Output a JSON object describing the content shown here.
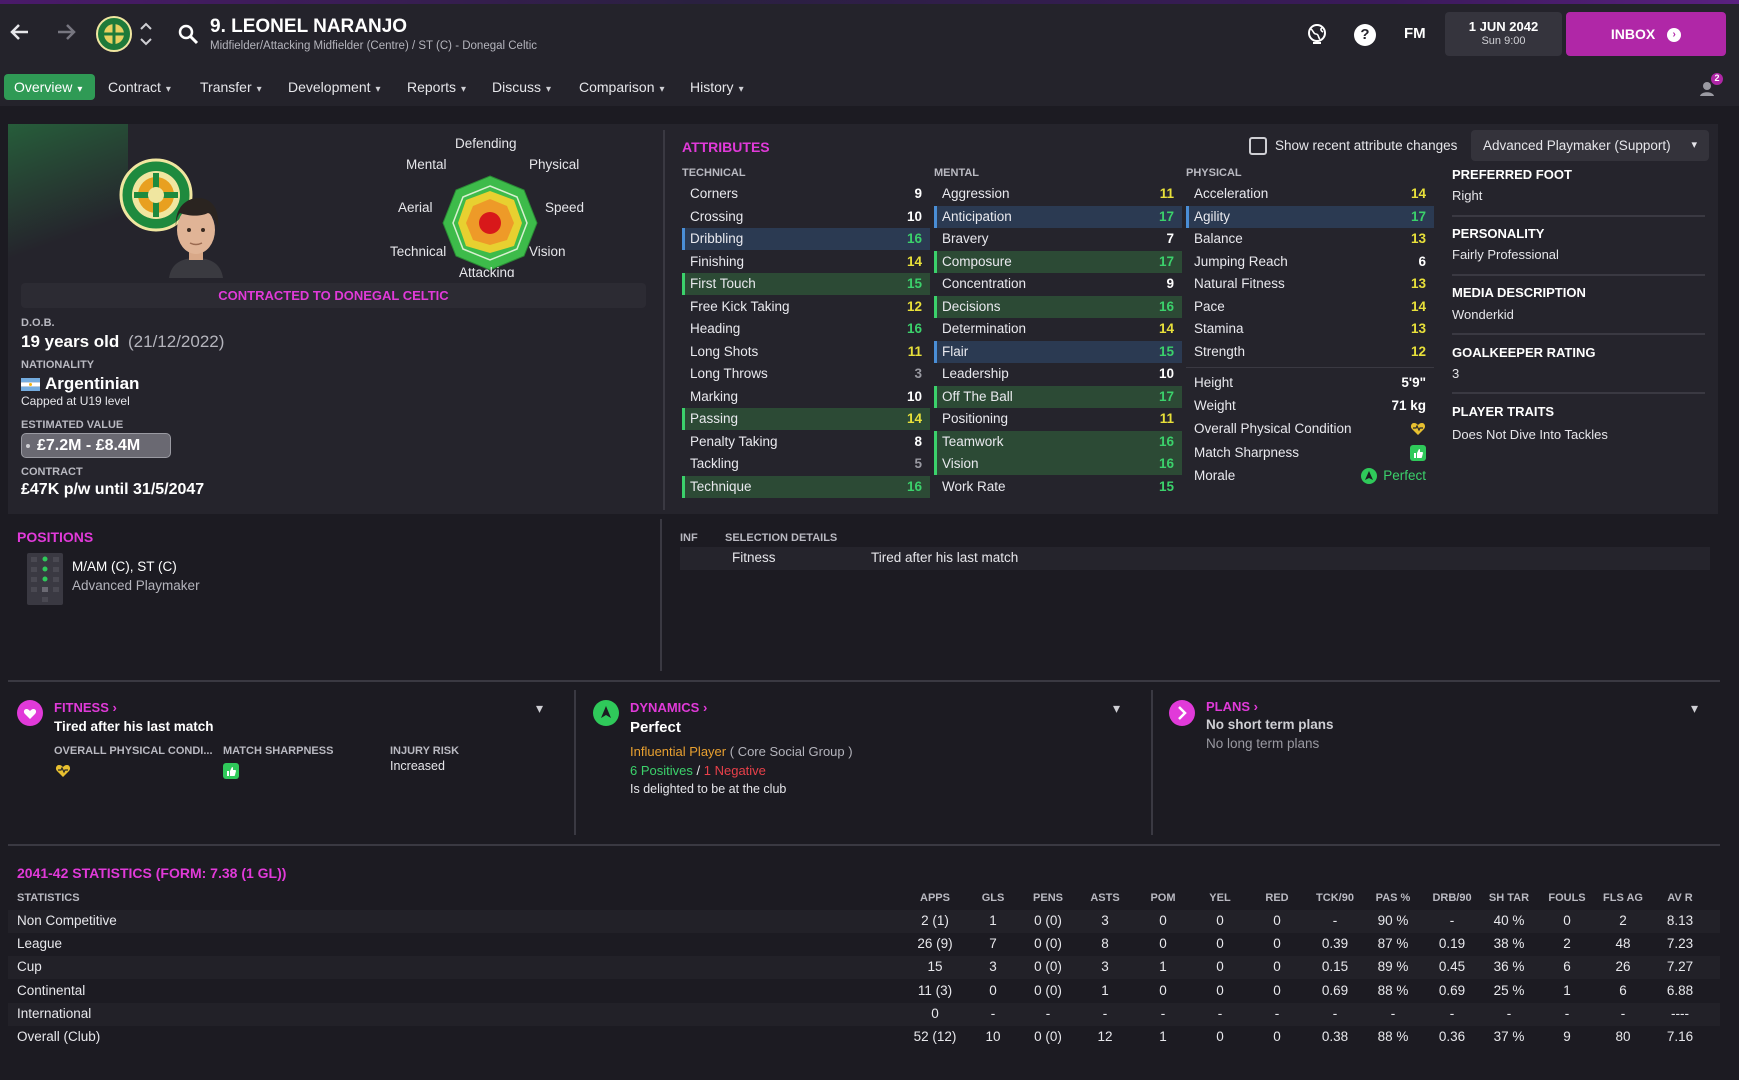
{
  "header": {
    "player_name": "9. LEONEL NARANJO",
    "player_subtitle": "Midfielder/Attacking Midfielder (Centre) / ST (C) - Donegal Celtic",
    "fm_label": "FM",
    "date": "1 JUN 2042",
    "time": "Sun 9:00",
    "inbox_label": "INBOX",
    "notification_count": "2"
  },
  "nav": {
    "items": [
      "Overview",
      "Contract",
      "Transfer",
      "Development",
      "Reports",
      "Discuss",
      "Comparison",
      "History"
    ]
  },
  "profile": {
    "radar_labels": {
      "top": "Defending",
      "top_left": "Mental",
      "top_right": "Physical",
      "left": "Aerial",
      "right": "Speed",
      "bottom_left": "Technical",
      "bottom_right": "Vision",
      "bottom": "Attacking"
    },
    "contract_banner": "CONTRACTED TO DONEGAL CELTIC",
    "dob_label": "D.O.B.",
    "dob_age": "19 years old",
    "dob_date": "(21/12/2022)",
    "nationality_label": "NATIONALITY",
    "nationality": "Argentinian",
    "capped": "Capped at U19 level",
    "value_label": "ESTIMATED VALUE",
    "value": "£7.2M - £8.4M",
    "contract_label": "CONTRACT",
    "contract": "£47K p/w until 31/5/2047"
  },
  "attributes": {
    "title": "ATTRIBUTES",
    "show_changes_label": "Show recent attribute changes",
    "role_select": "Advanced Playmaker (Support)",
    "technical_head": "TECHNICAL",
    "mental_head": "MENTAL",
    "physical_head": "PHYSICAL",
    "technical": [
      {
        "name": "Corners",
        "value": "9"
      },
      {
        "name": "Crossing",
        "value": "10"
      },
      {
        "name": "Dribbling",
        "value": "16"
      },
      {
        "name": "Finishing",
        "value": "14"
      },
      {
        "name": "First Touch",
        "value": "15"
      },
      {
        "name": "Free Kick Taking",
        "value": "12"
      },
      {
        "name": "Heading",
        "value": "16"
      },
      {
        "name": "Long Shots",
        "value": "11"
      },
      {
        "name": "Long Throws",
        "value": "3"
      },
      {
        "name": "Marking",
        "value": "10"
      },
      {
        "name": "Passing",
        "value": "14"
      },
      {
        "name": "Penalty Taking",
        "value": "8"
      },
      {
        "name": "Tackling",
        "value": "5"
      },
      {
        "name": "Technique",
        "value": "16"
      }
    ],
    "mental": [
      {
        "name": "Aggression",
        "value": "11"
      },
      {
        "name": "Anticipation",
        "value": "17"
      },
      {
        "name": "Bravery",
        "value": "7"
      },
      {
        "name": "Composure",
        "value": "17"
      },
      {
        "name": "Concentration",
        "value": "9"
      },
      {
        "name": "Decisions",
        "value": "16"
      },
      {
        "name": "Determination",
        "value": "14"
      },
      {
        "name": "Flair",
        "value": "15"
      },
      {
        "name": "Leadership",
        "value": "10"
      },
      {
        "name": "Off The Ball",
        "value": "17"
      },
      {
        "name": "Positioning",
        "value": "11"
      },
      {
        "name": "Teamwork",
        "value": "16"
      },
      {
        "name": "Vision",
        "value": "16"
      },
      {
        "name": "Work Rate",
        "value": "15"
      }
    ],
    "physical": [
      {
        "name": "Acceleration",
        "value": "14"
      },
      {
        "name": "Agility",
        "value": "17"
      },
      {
        "name": "Balance",
        "value": "13"
      },
      {
        "name": "Jumping Reach",
        "value": "6"
      },
      {
        "name": "Natural Fitness",
        "value": "13"
      },
      {
        "name": "Pace",
        "value": "14"
      },
      {
        "name": "Stamina",
        "value": "13"
      },
      {
        "name": "Strength",
        "value": "12"
      }
    ],
    "height_label": "Height",
    "height": "5'9\"",
    "weight_label": "Weight",
    "weight": "71 kg",
    "condition_label": "Overall Physical Condition",
    "sharpness_label": "Match Sharpness",
    "morale_label": "Morale",
    "morale": "Perfect"
  },
  "info": {
    "foot_label": "PREFERRED FOOT",
    "foot": "Right",
    "personality_label": "PERSONALITY",
    "personality": "Fairly Professional",
    "media_label": "MEDIA DESCRIPTION",
    "media": "Wonderkid",
    "gk_label": "GOALKEEPER RATING",
    "gk": "3",
    "traits_label": "PLAYER TRAITS",
    "traits": "Does Not Dive Into Tackles"
  },
  "positions": {
    "title": "POSITIONS",
    "positions": "M/AM (C), ST (C)",
    "role": "Advanced Playmaker"
  },
  "selection": {
    "inf_head": "INF",
    "details_head": "SELECTION DETAILS",
    "row_key": "Fitness",
    "row_val": "Tired after his last match"
  },
  "fitness": {
    "title": "FITNESS",
    "status": "Tired after his last match",
    "condition_label": "OVERALL PHYSICAL CONDI...",
    "sharpness_label": "MATCH SHARPNESS",
    "injury_label": "INJURY RISK",
    "injury": "Increased"
  },
  "dynamics": {
    "title": "DYNAMICS",
    "status": "Perfect",
    "influence": "Influential Player",
    "group": "( Core Social Group )",
    "positives": "6 Positives",
    "slash": "/",
    "negatives": "1 Negative",
    "happiness": "Is delighted to be at the club"
  },
  "plans": {
    "title": "PLANS",
    "short": "No short term plans",
    "long": "No long term plans"
  },
  "stats": {
    "title": "2041-42 STATISTICS (FORM: 7.38 (1 GL))",
    "headers": [
      "STATISTICS",
      "APPS",
      "GLS",
      "PENS",
      "ASTS",
      "POM",
      "YEL",
      "RED",
      "TCK/90",
      "PAS %",
      "DRB/90",
      "SH TAR",
      "FOULS",
      "FLS AG",
      "AV R"
    ],
    "rows": [
      [
        "Non Competitive",
        "2 (1)",
        "1",
        "0 (0)",
        "3",
        "0",
        "0",
        "0",
        "-",
        "90 %",
        "-",
        "40 %",
        "0",
        "2",
        "8.13"
      ],
      [
        "League",
        "26 (9)",
        "7",
        "0 (0)",
        "8",
        "0",
        "0",
        "0",
        "0.39",
        "87 %",
        "0.19",
        "38 %",
        "2",
        "48",
        "7.23"
      ],
      [
        "Cup",
        "15",
        "3",
        "0 (0)",
        "3",
        "1",
        "0",
        "0",
        "0.15",
        "89 %",
        "0.45",
        "36 %",
        "6",
        "26",
        "7.27"
      ],
      [
        "Continental",
        "11 (3)",
        "0",
        "0 (0)",
        "1",
        "0",
        "0",
        "0",
        "0.69",
        "88 %",
        "0.69",
        "25 %",
        "1",
        "6",
        "6.88"
      ],
      [
        "International",
        "0",
        "-",
        "-",
        "-",
        "-",
        "-",
        "-",
        "-",
        "-",
        "-",
        "-",
        "-",
        "-",
        "----"
      ],
      [
        "Overall (Club)",
        "52 (12)",
        "10",
        "0 (0)",
        "12",
        "1",
        "0",
        "0",
        "0.38",
        "88 %",
        "0.36",
        "37 %",
        "9",
        "80",
        "7.16"
      ]
    ]
  },
  "colors": {
    "accent": "#e13ad9",
    "green": "#3bd16b",
    "yellow": "#e8e03a",
    "inbox": "#b027a7"
  }
}
